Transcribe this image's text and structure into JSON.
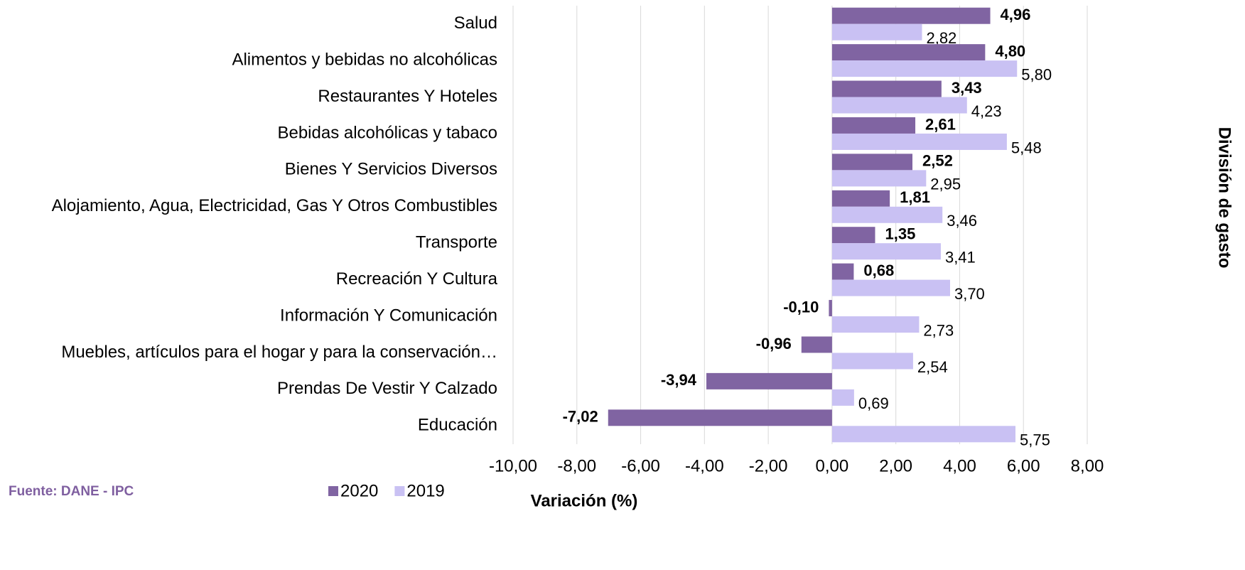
{
  "chart_data": {
    "type": "hbar",
    "x_label": "Variación (%)",
    "y_label": "División de gasto",
    "source": "Fuente: DANE - IPC",
    "categories": [
      "Salud",
      "Alimentos y bebidas no alcohólicas",
      "Restaurantes Y Hoteles",
      "Bebidas alcohólicas y tabaco",
      "Bienes Y Servicios Diversos",
      "Alojamiento, Agua, Electricidad, Gas Y Otros Combustibles",
      "Transporte",
      "Recreación Y Cultura",
      "Información Y Comunicación",
      "Muebles, artículos para el hogar y para la conservación…",
      "Prendas De Vestir Y Calzado",
      "Educación"
    ],
    "series": [
      {
        "name": "2020",
        "color": "#8064a2",
        "values": [
          4.96,
          4.8,
          3.43,
          2.61,
          2.52,
          1.81,
          1.35,
          0.68,
          -0.1,
          -0.96,
          -3.94,
          -7.02
        ],
        "value_labels": [
          "4,96",
          "4,80",
          "3,43",
          "2,61",
          "2,52",
          "1,81",
          "1,35",
          "0,68",
          "-0,10",
          "-0,96",
          "-3,94",
          "-7,02"
        ]
      },
      {
        "name": "2019",
        "color": "#c9c1f3",
        "values": [
          2.82,
          5.8,
          4.23,
          5.48,
          2.95,
          3.46,
          3.41,
          3.7,
          2.73,
          2.54,
          0.69,
          5.75
        ],
        "value_labels": [
          "2,82",
          "5,80",
          "4,23",
          "5,48",
          "2,95",
          "3,46",
          "3,41",
          "3,70",
          "2,73",
          "2,54",
          "0,69",
          "5,75"
        ]
      }
    ],
    "xlim": [
      -10,
      8
    ],
    "xticks": [
      {
        "value": -10,
        "label": "-10,00"
      },
      {
        "value": -8,
        "label": "-8,00"
      },
      {
        "value": -6,
        "label": "-6,00"
      },
      {
        "value": -4,
        "label": "-4,00"
      },
      {
        "value": -2,
        "label": "-2,00"
      },
      {
        "value": 0,
        "label": "0,00"
      },
      {
        "value": 2,
        "label": "2,00"
      },
      {
        "value": 4,
        "label": "4,00"
      },
      {
        "value": 6,
        "label": "6,00"
      },
      {
        "value": 8,
        "label": "8,00"
      }
    ],
    "grid": true,
    "legend": "bottom"
  }
}
